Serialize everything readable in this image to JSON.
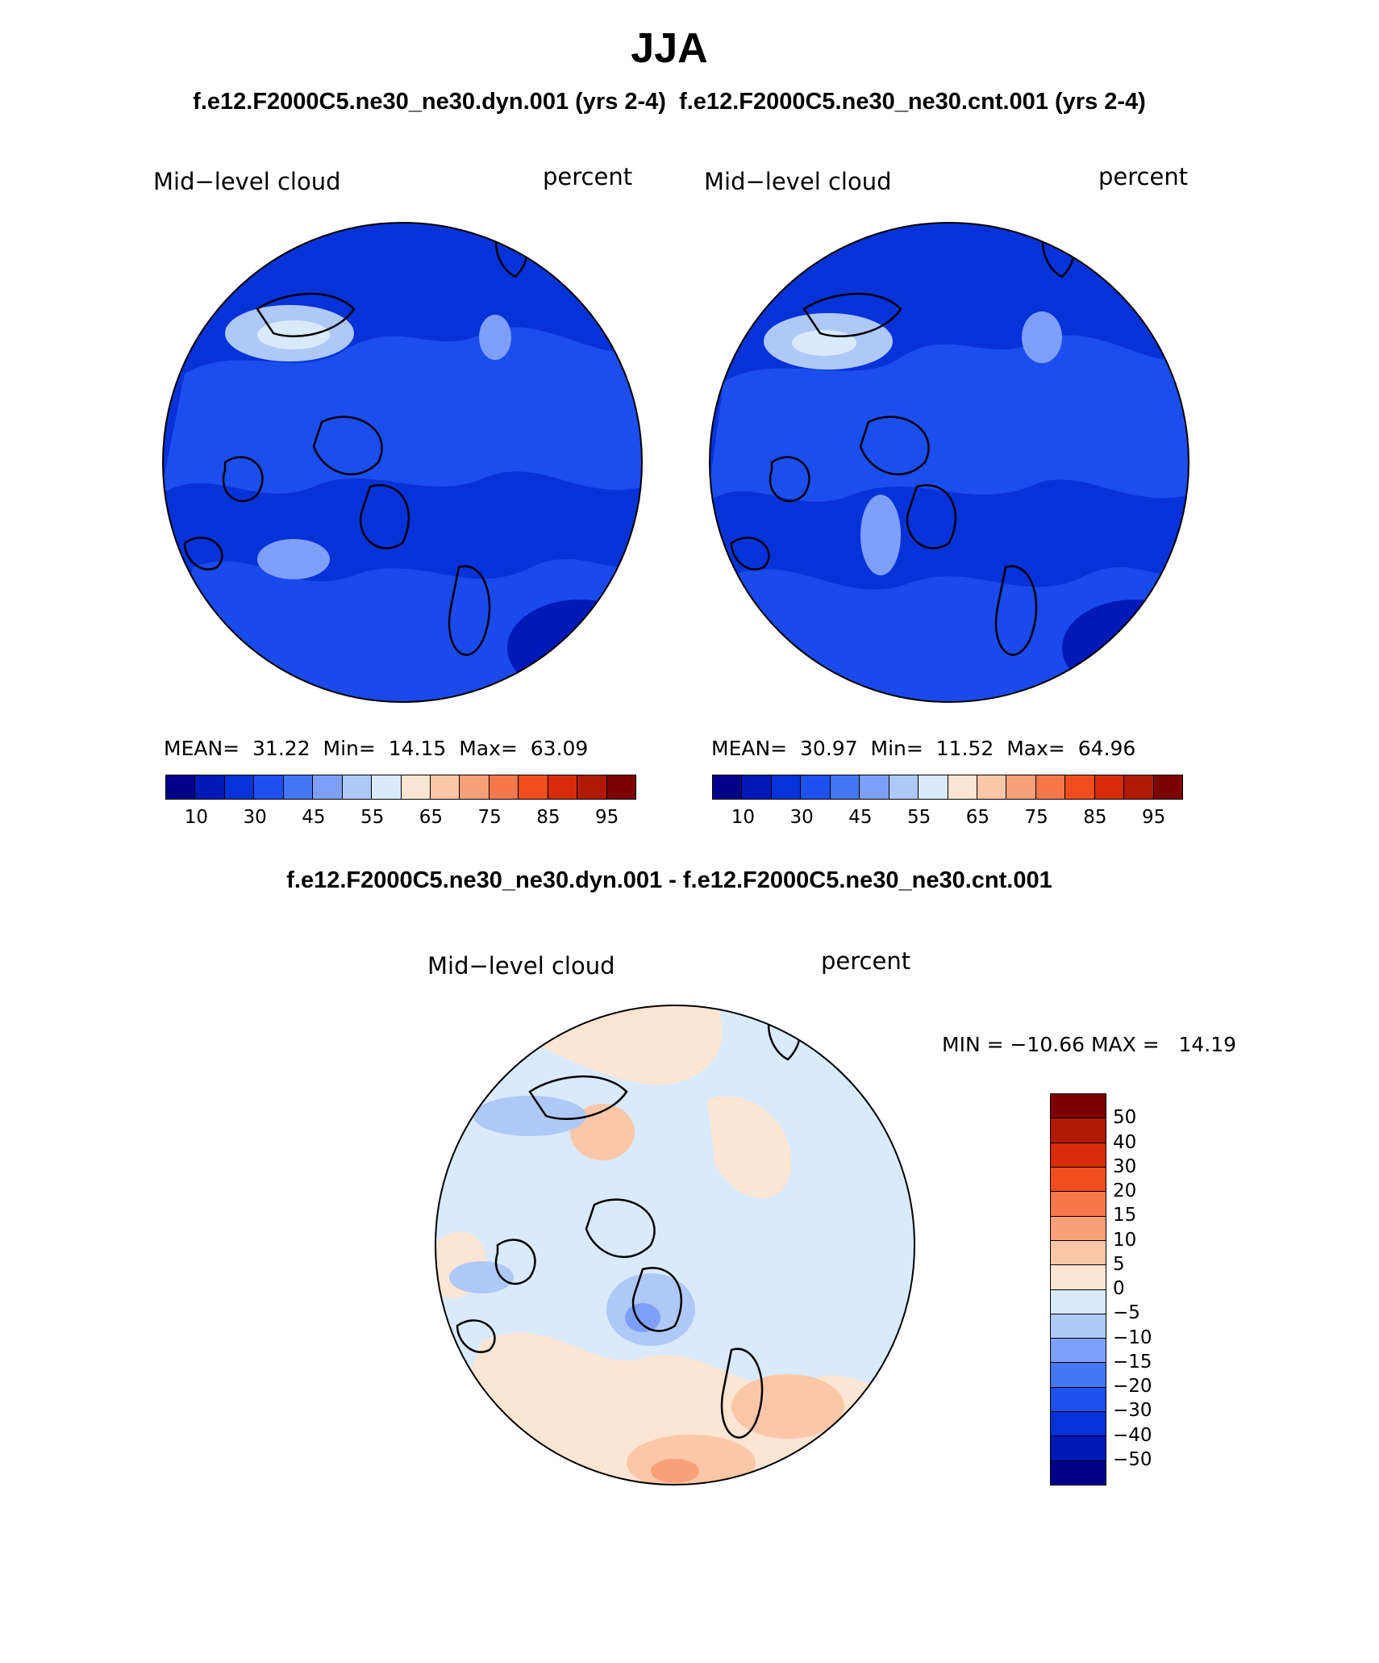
{
  "title": "JJA",
  "panel_left": {
    "case": "f.e12.F2000C5.ne30_ne30.dyn.001 (yrs 2-4)",
    "variable": "Mid−level cloud",
    "units": "percent",
    "mean_label": "MEAN=",
    "mean": "31.22",
    "min_label": "Min=",
    "min": "14.15",
    "max_label": "Max=",
    "max": "63.09"
  },
  "panel_right": {
    "case": "f.e12.F2000C5.ne30_ne30.cnt.001 (yrs 2-4)",
    "variable": "Mid−level cloud",
    "units": "percent",
    "mean_label": "MEAN=",
    "mean": "30.97",
    "min_label": "Min=",
    "min": "11.52",
    "max_label": "Max=",
    "max": "64.96"
  },
  "colorbar_abs": {
    "ticks": [
      "10",
      "30",
      "45",
      "55",
      "65",
      "75",
      "85",
      "95"
    ],
    "colors": [
      "#00008b",
      "#0019b8",
      "#0632d8",
      "#1f50f0",
      "#4576f5",
      "#7e9ff7",
      "#aec8f7",
      "#d9eafb",
      "#fde5d3",
      "#fbc7a8",
      "#f9a07a",
      "#f8784d",
      "#f04d20",
      "#d82b0a",
      "#b01a05",
      "#7d0000"
    ]
  },
  "diff_panel": {
    "title": "f.e12.F2000C5.ne30_ne30.dyn.001 - f.e12.F2000C5.ne30_ne30.cnt.001",
    "variable": "Mid−level cloud",
    "units": "percent",
    "minmax_text": "MIN = −10.66 MAX =   14.19"
  },
  "colorbar_diff": {
    "ticks": [
      "50",
      "40",
      "30",
      "20",
      "15",
      "10",
      "5",
      "0",
      "−5",
      "−10",
      "−15",
      "−20",
      "−30",
      "−40",
      "−50"
    ],
    "colors_top_down": [
      "#7d0000",
      "#b01a05",
      "#d82b0a",
      "#f04d20",
      "#f8784d",
      "#f9a07a",
      "#fbc7a8",
      "#fde5d3",
      "#d9eafb",
      "#aec8f7",
      "#7e9ff7",
      "#4576f5",
      "#1f50f0",
      "#0632d8",
      "#0019b8",
      "#00008b"
    ]
  }
}
